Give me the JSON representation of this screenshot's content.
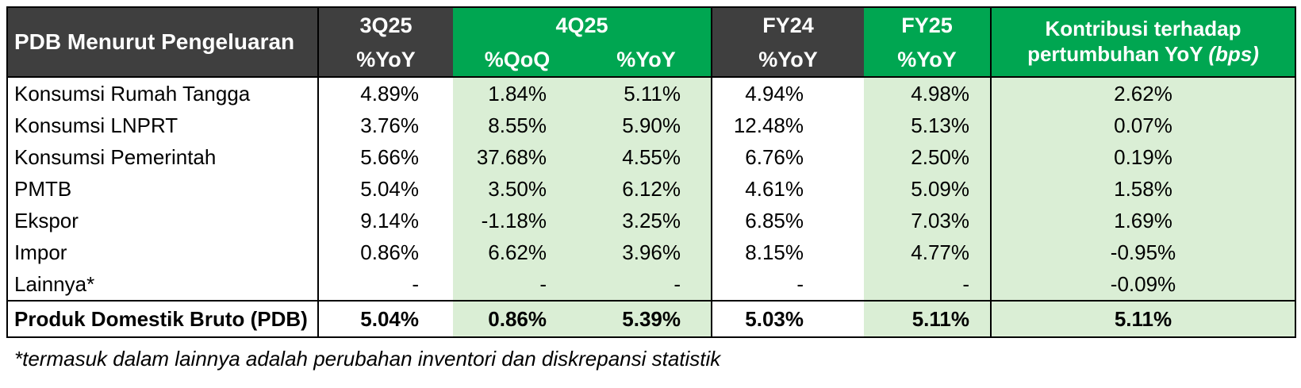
{
  "colors": {
    "header_dark": "#3F3F3F",
    "header_green": "#00A651",
    "body_green_tint": "#DAEED5",
    "border": "#000000",
    "header_text": "#FFFFFF",
    "body_text": "#000000"
  },
  "chart_data": {
    "type": "table",
    "title": "PDB Menurut Pengeluaran",
    "corner_header": "PDB Menurut Pengeluaran",
    "column_groups": {
      "q3_25": {
        "label": "3Q25",
        "sub": "%YoY"
      },
      "q4_25": {
        "label": "4Q25",
        "sub_qoq": "%QoQ",
        "sub_yoy": "%YoY"
      },
      "fy24": {
        "label": "FY24",
        "sub": "%YoY"
      },
      "fy25": {
        "label": "FY25",
        "sub": "%YoY"
      },
      "contribution": {
        "line1": "Kontribusi terhadap",
        "line2": "pertumbuhan YoY",
        "line2_italic": "(bps)"
      }
    },
    "rows": [
      {
        "label": "Konsumsi Rumah Tangga",
        "values": [
          "4.89%",
          "1.84%",
          "5.11%",
          "4.94%",
          "4.98%",
          "2.62%"
        ]
      },
      {
        "label": "Konsumsi LNPRT",
        "values": [
          "3.76%",
          "8.55%",
          "5.90%",
          "12.48%",
          "5.13%",
          "0.07%"
        ]
      },
      {
        "label": "Konsumsi Pemerintah",
        "values": [
          "5.66%",
          "37.68%",
          "4.55%",
          "6.76%",
          "2.50%",
          "0.19%"
        ]
      },
      {
        "label": "PMTB",
        "values": [
          "5.04%",
          "3.50%",
          "6.12%",
          "4.61%",
          "5.09%",
          "1.58%"
        ]
      },
      {
        "label": "Ekspor",
        "values": [
          "9.14%",
          "-1.18%",
          "3.25%",
          "6.85%",
          "7.03%",
          "1.69%"
        ]
      },
      {
        "label": "Impor",
        "values": [
          "0.86%",
          "6.62%",
          "3.96%",
          "8.15%",
          "4.77%",
          "-0.95%"
        ]
      },
      {
        "label": "Lainnya*",
        "values": [
          "-",
          "-",
          "-",
          "-",
          "-",
          "-0.09%"
        ]
      }
    ],
    "total_row": {
      "label": "Produk Domestik Bruto (PDB)",
      "values": [
        "5.04%",
        "0.86%",
        "5.39%",
        "5.03%",
        "5.11%",
        "5.11%"
      ]
    },
    "footnote": "*termasuk dalam lainnya adalah perubahan inventori dan diskrepansi statistik"
  }
}
